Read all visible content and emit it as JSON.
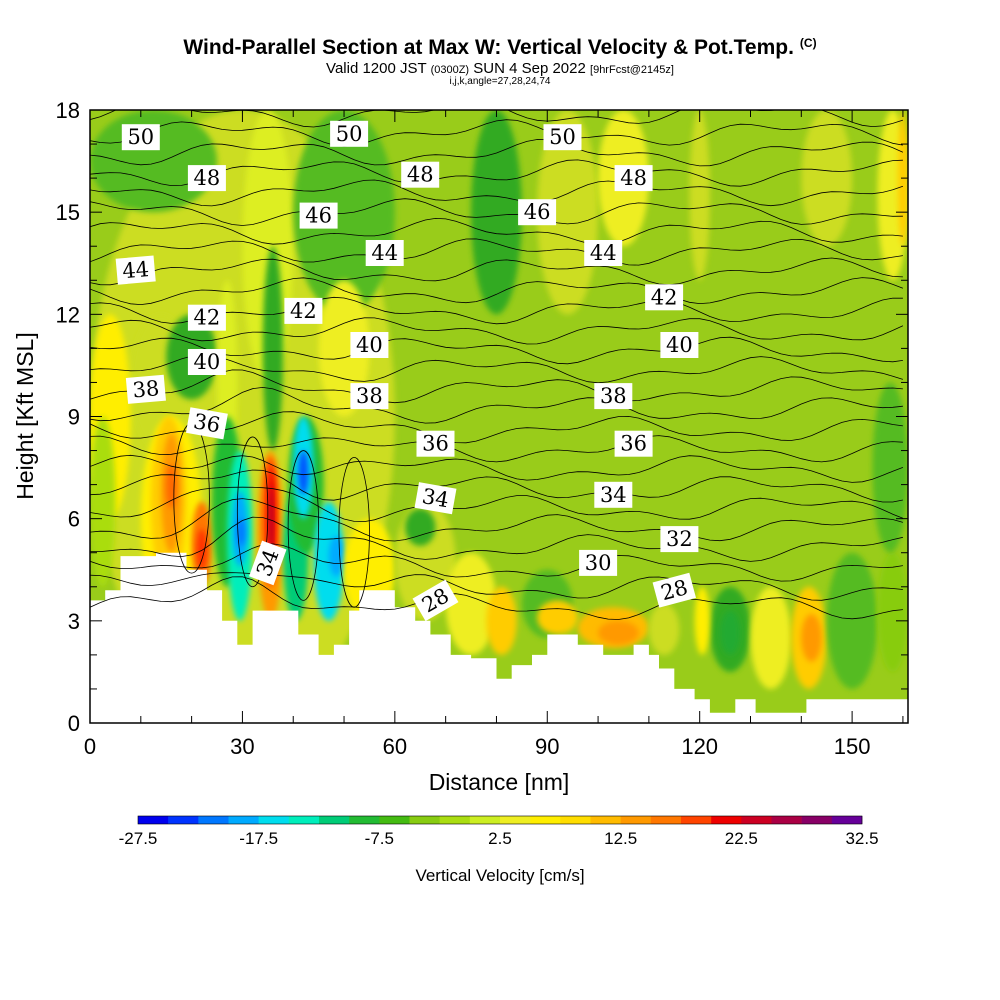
{
  "title": {
    "main": "Wind-Parallel Section at Max W: Vertical Velocity & Pot.Temp.",
    "copyright": "(C)",
    "valid_prefix": "Valid 1200 JST",
    "valid_z": "(0300Z)",
    "valid_date": "SUN 4 Sep 2022",
    "forecast": "[9hrFcst@2145z]",
    "indices": "i,j,k,angle=27,28,24,74"
  },
  "chart_data": {
    "type": "heatmap",
    "xlabel": "Distance [nm]",
    "ylabel": "Height [Kft MSL]",
    "xlim": [
      0,
      161
    ],
    "ylim": [
      0,
      18
    ],
    "x_ticks": [
      "0",
      "30",
      "60",
      "90",
      "120",
      "150"
    ],
    "y_ticks": [
      "0",
      "3",
      "6",
      "9",
      "12",
      "15",
      "18"
    ],
    "colorbar": {
      "label": "Vertical Velocity [cm/s]",
      "tick_labels": [
        "-27.5",
        "-17.5",
        "-7.5",
        "2.5",
        "12.5",
        "22.5",
        "32.5"
      ],
      "colors": [
        "#0000ee",
        "#0033ff",
        "#0077ff",
        "#00aaff",
        "#00ddee",
        "#00eebb",
        "#00cc77",
        "#22bb33",
        "#44bb11",
        "#88cc11",
        "#aadd11",
        "#ccee22",
        "#eeee22",
        "#ffee00",
        "#ffdd00",
        "#ffbb00",
        "#ff9900",
        "#ff7700",
        "#ff4400",
        "#ee0000",
        "#cc0022",
        "#aa0044",
        "#880066",
        "#660099"
      ]
    },
    "theta_contour_labels": [
      {
        "text": "50",
        "x": 10,
        "y": 17.2,
        "angle": 0
      },
      {
        "text": "50",
        "x": 51,
        "y": 17.3,
        "angle": 0
      },
      {
        "text": "50",
        "x": 93,
        "y": 17.2,
        "angle": 0
      },
      {
        "text": "48",
        "x": 23,
        "y": 16.0,
        "angle": 0
      },
      {
        "text": "48",
        "x": 65,
        "y": 16.1,
        "angle": 0
      },
      {
        "text": "48",
        "x": 107,
        "y": 16.0,
        "angle": 0
      },
      {
        "text": "46",
        "x": 45,
        "y": 14.9,
        "angle": 0
      },
      {
        "text": "46",
        "x": 88,
        "y": 15.0,
        "angle": 0
      },
      {
        "text": "44",
        "x": 9,
        "y": 13.3,
        "angle": -5
      },
      {
        "text": "44",
        "x": 58,
        "y": 13.8,
        "angle": 0
      },
      {
        "text": "44",
        "x": 101,
        "y": 13.8,
        "angle": 0
      },
      {
        "text": "42",
        "x": 23,
        "y": 11.9,
        "angle": 0
      },
      {
        "text": "42",
        "x": 42,
        "y": 12.1,
        "angle": 0
      },
      {
        "text": "42",
        "x": 113,
        "y": 12.5,
        "angle": 0
      },
      {
        "text": "40",
        "x": 23,
        "y": 10.6,
        "angle": 0
      },
      {
        "text": "40",
        "x": 55,
        "y": 11.1,
        "angle": 0
      },
      {
        "text": "40",
        "x": 116,
        "y": 11.1,
        "angle": 0
      },
      {
        "text": "38",
        "x": 11,
        "y": 9.8,
        "angle": -5
      },
      {
        "text": "38",
        "x": 55,
        "y": 9.6,
        "angle": 0
      },
      {
        "text": "38",
        "x": 103,
        "y": 9.6,
        "angle": 0
      },
      {
        "text": "36",
        "x": 23,
        "y": 8.8,
        "angle": 10
      },
      {
        "text": "36",
        "x": 68,
        "y": 8.2,
        "angle": 0
      },
      {
        "text": "36",
        "x": 107,
        "y": 8.2,
        "angle": 0
      },
      {
        "text": "34",
        "x": 68,
        "y": 6.6,
        "angle": 10
      },
      {
        "text": "34",
        "x": 103,
        "y": 6.7,
        "angle": 0
      },
      {
        "text": "34",
        "x": 35,
        "y": 4.7,
        "angle": -70
      },
      {
        "text": "32",
        "x": 116,
        "y": 5.4,
        "angle": 0
      },
      {
        "text": "30",
        "x": 100,
        "y": 4.7,
        "angle": 0
      },
      {
        "text": "28",
        "x": 68,
        "y": 3.6,
        "angle": -30
      },
      {
        "text": "28",
        "x": 115,
        "y": 3.9,
        "angle": -15
      }
    ]
  }
}
